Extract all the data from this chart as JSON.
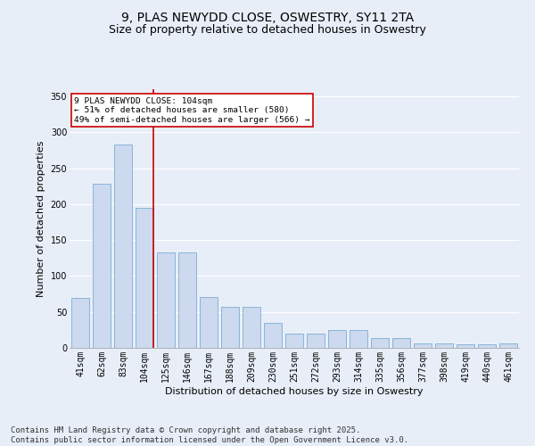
{
  "title": "9, PLAS NEWYDD CLOSE, OSWESTRY, SY11 2TA",
  "subtitle": "Size of property relative to detached houses in Oswestry",
  "xlabel": "Distribution of detached houses by size in Oswestry",
  "ylabel": "Number of detached properties",
  "categories": [
    "41sqm",
    "62sqm",
    "83sqm",
    "104sqm",
    "125sqm",
    "146sqm",
    "167sqm",
    "188sqm",
    "209sqm",
    "230sqm",
    "251sqm",
    "272sqm",
    "293sqm",
    "314sqm",
    "335sqm",
    "356sqm",
    "377sqm",
    "398sqm",
    "419sqm",
    "440sqm",
    "461sqm"
  ],
  "values": [
    70,
    228,
    283,
    195,
    133,
    133,
    71,
    57,
    57,
    35,
    20,
    20,
    25,
    25,
    14,
    14,
    6,
    6,
    5,
    5,
    6
  ],
  "bar_color": "#ccd9ee",
  "bar_edge_color": "#7aaed4",
  "vline_index": 3,
  "vline_color": "#cc0000",
  "annotation_text": "9 PLAS NEWYDD CLOSE: 104sqm\n← 51% of detached houses are smaller (580)\n49% of semi-detached houses are larger (566) →",
  "annotation_box_color": "#ffffff",
  "annotation_box_edge": "#cc0000",
  "ylim": [
    0,
    360
  ],
  "yticks": [
    0,
    50,
    100,
    150,
    200,
    250,
    300,
    350
  ],
  "footnote": "Contains HM Land Registry data © Crown copyright and database right 2025.\nContains public sector information licensed under the Open Government Licence v3.0.",
  "bg_color": "#e8eef8",
  "plot_bg_color": "#e8eef8",
  "title_fontsize": 10,
  "subtitle_fontsize": 9,
  "axis_label_fontsize": 8,
  "tick_fontsize": 7,
  "footnote_fontsize": 6.5
}
